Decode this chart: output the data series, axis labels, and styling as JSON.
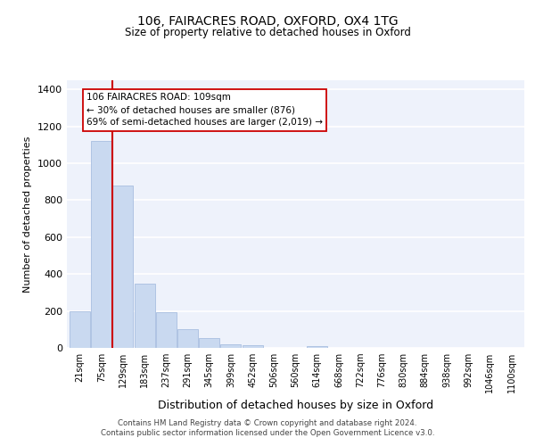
{
  "title_line1": "106, FAIRACRES ROAD, OXFORD, OX4 1TG",
  "title_line2": "Size of property relative to detached houses in Oxford",
  "xlabel": "Distribution of detached houses by size in Oxford",
  "ylabel": "Number of detached properties",
  "bar_labels": [
    "21sqm",
    "75sqm",
    "129sqm",
    "183sqm",
    "237sqm",
    "291sqm",
    "345sqm",
    "399sqm",
    "452sqm",
    "506sqm",
    "560sqm",
    "614sqm",
    "668sqm",
    "722sqm",
    "776sqm",
    "830sqm",
    "884sqm",
    "938sqm",
    "992sqm",
    "1046sqm",
    "1100sqm"
  ],
  "bar_values": [
    200,
    1120,
    880,
    350,
    195,
    100,
    55,
    20,
    13,
    0,
    0,
    10,
    0,
    0,
    0,
    0,
    0,
    0,
    0,
    0,
    0
  ],
  "bar_color": "#c9d9f0",
  "bar_edge_color": "#a8bee0",
  "vline_color": "#cc0000",
  "vline_bar_index": 1,
  "ylim": [
    0,
    1450
  ],
  "yticks": [
    0,
    200,
    400,
    600,
    800,
    1000,
    1200,
    1400
  ],
  "annotation_line1": "106 FAIRACRES ROAD: 109sqm",
  "annotation_line2": "← 30% of detached houses are smaller (876)",
  "annotation_line3": "69% of semi-detached houses are larger (2,019) →",
  "footer_line1": "Contains HM Land Registry data © Crown copyright and database right 2024.",
  "footer_line2": "Contains public sector information licensed under the Open Government Licence v3.0.",
  "background_color": "#eef2fb",
  "grid_color": "#ffffff",
  "fig_bg_color": "#ffffff"
}
